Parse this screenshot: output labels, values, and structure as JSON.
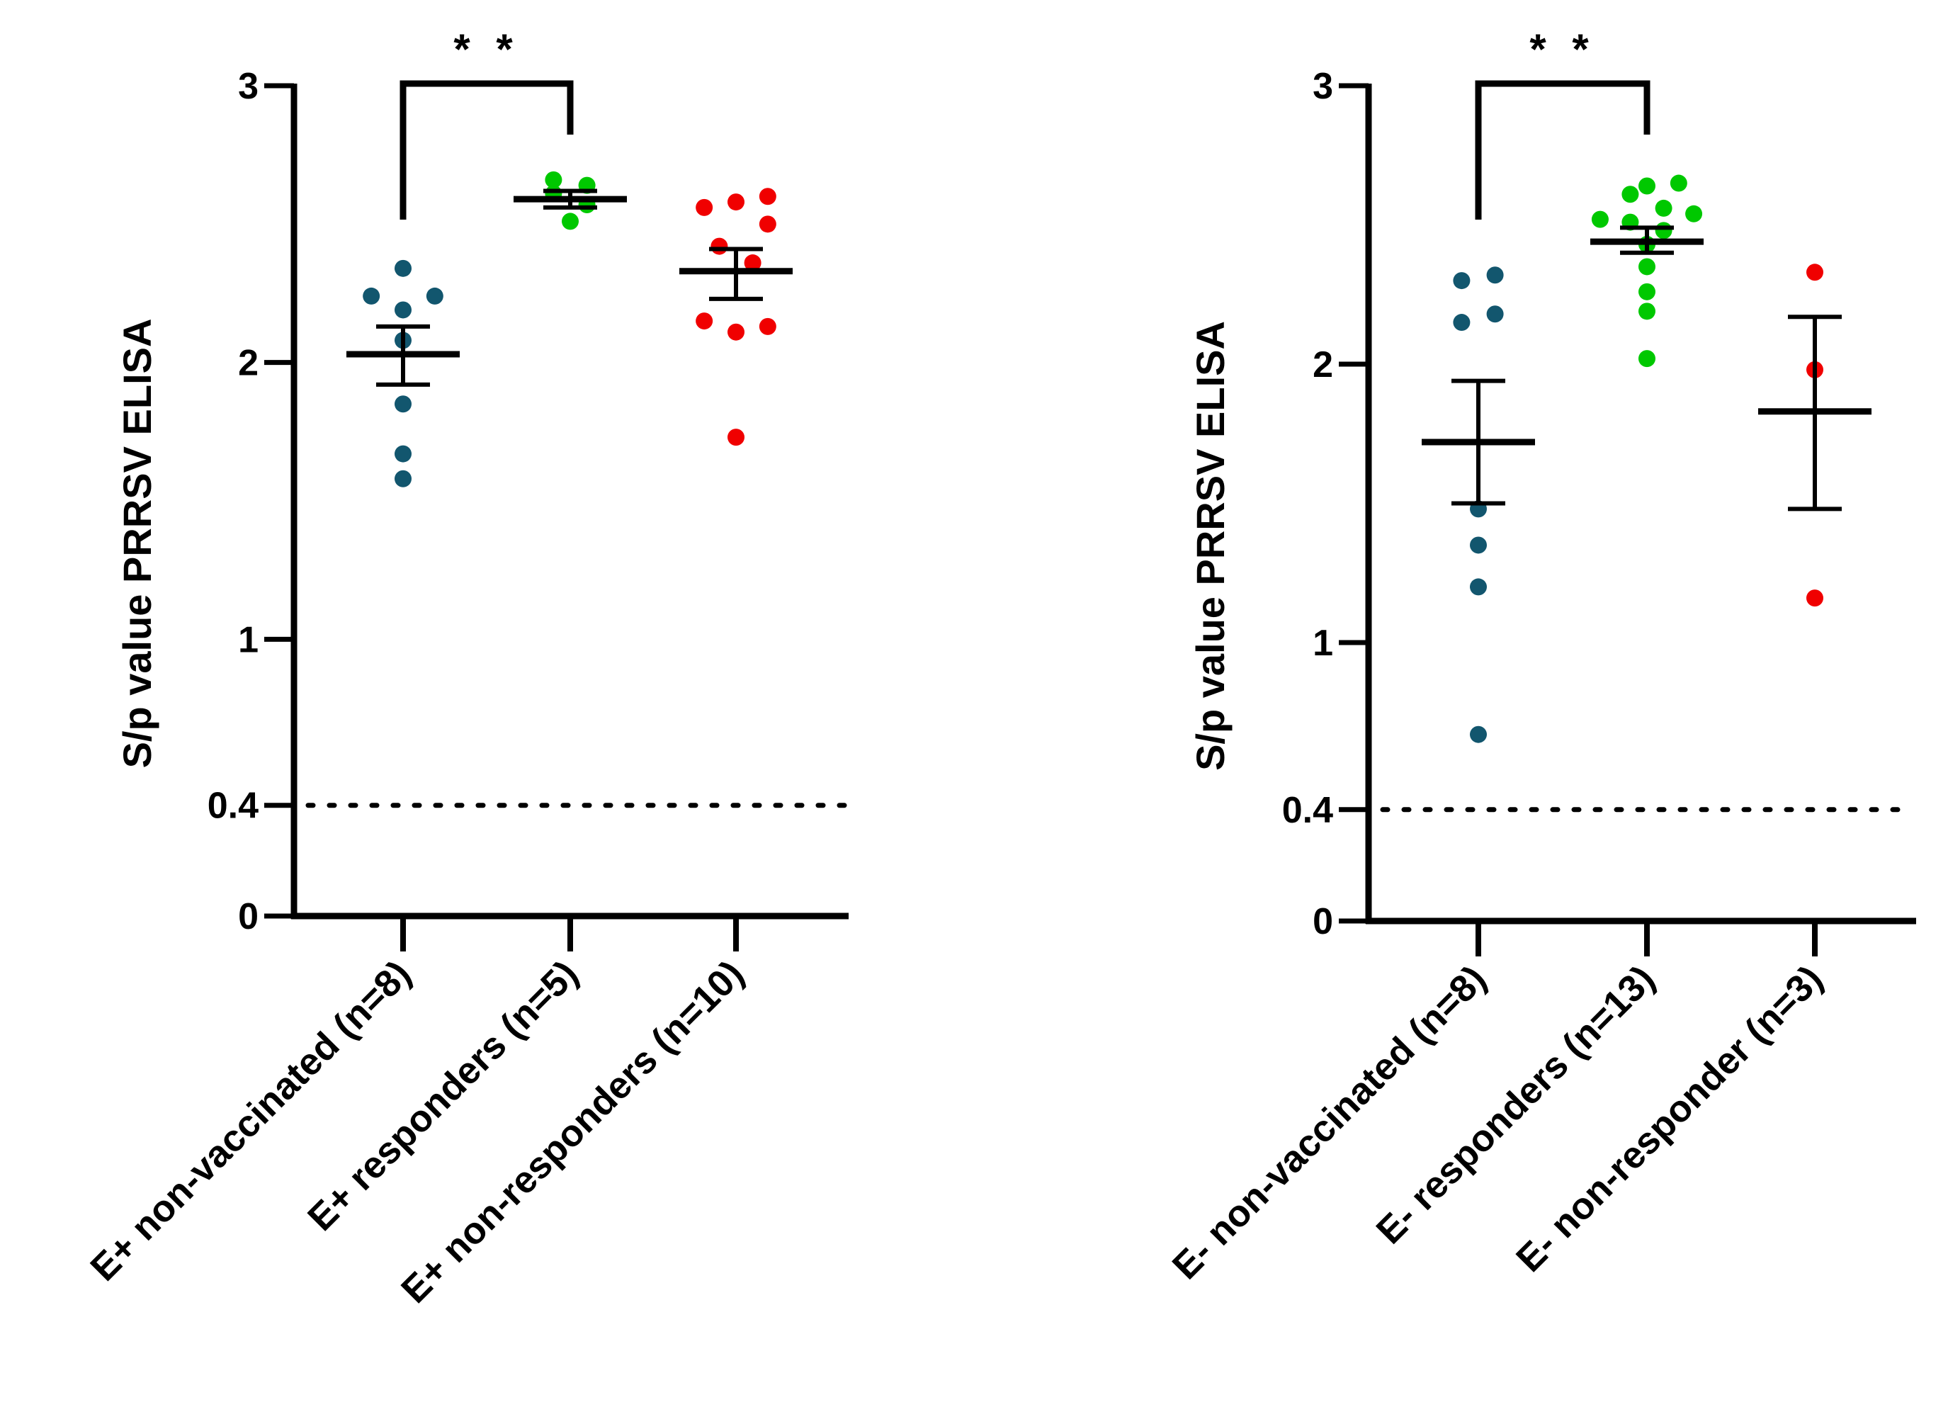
{
  "chart_data": [
    {
      "type": "scatter",
      "ylabel": "S/p value PRRSV ELISA",
      "ylim": [
        0,
        3
      ],
      "yticks": [
        0,
        0.4,
        1,
        2,
        3
      ],
      "ytick_labels": [
        "0",
        "0.4",
        "1",
        "2",
        "3"
      ],
      "threshold": 0.4,
      "categories": [
        "E+ non-vaccinated (n=8)",
        "E+ responders (n=5)",
        "E+ non-responders (n=10)"
      ],
      "series": [
        {
          "color": "#12566e",
          "points": [
            {
              "dx": 0.0,
              "y": 2.34
            },
            {
              "dx": -0.19,
              "y": 2.24
            },
            {
              "dx": 0.19,
              "y": 2.24
            },
            {
              "dx": 0.0,
              "y": 2.19
            },
            {
              "dx": 0.0,
              "y": 2.08
            },
            {
              "dx": 0.0,
              "y": 1.85
            },
            {
              "dx": 0.0,
              "y": 1.67
            },
            {
              "dx": 0.0,
              "y": 1.58
            }
          ],
          "mean": 2.03,
          "sem_low": 1.92,
          "sem_high": 2.13
        },
        {
          "color": "#00c800",
          "points": [
            {
              "dx": -0.1,
              "y": 2.66
            },
            {
              "dx": 0.1,
              "y": 2.64
            },
            {
              "dx": -0.1,
              "y": 2.61
            },
            {
              "dx": 0.1,
              "y": 2.57
            },
            {
              "dx": 0.0,
              "y": 2.51
            }
          ],
          "mean": 2.59,
          "sem_low": 2.56,
          "sem_high": 2.62
        },
        {
          "color": "#f00000",
          "points": [
            {
              "dx": -0.19,
              "y": 2.56
            },
            {
              "dx": 0.0,
              "y": 2.58
            },
            {
              "dx": 0.19,
              "y": 2.6
            },
            {
              "dx": 0.19,
              "y": 2.5
            },
            {
              "dx": -0.1,
              "y": 2.42
            },
            {
              "dx": 0.1,
              "y": 2.36
            },
            {
              "dx": -0.19,
              "y": 2.15
            },
            {
              "dx": 0.19,
              "y": 2.13
            },
            {
              "dx": 0.0,
              "y": 2.11
            },
            {
              "dx": 0.0,
              "y": 1.73
            }
          ],
          "mean": 2.33,
          "sem_low": 2.23,
          "sem_high": 2.41
        }
      ],
      "significance": {
        "from": 0,
        "to": 1,
        "label": "* *"
      }
    },
    {
      "type": "scatter",
      "ylabel": "S/p value PRRSV ELISA",
      "ylim": [
        0,
        3
      ],
      "yticks": [
        0,
        0.4,
        1,
        2,
        3
      ],
      "ytick_labels": [
        "0",
        "0.4",
        "1",
        "2",
        "3"
      ],
      "threshold": 0.4,
      "categories": [
        "E- non-vaccinated (n=8)",
        "E- responders (n=13)",
        "E- non-responder (n=3)"
      ],
      "series": [
        {
          "color": "#12566e",
          "points": [
            {
              "dx": -0.1,
              "y": 2.3
            },
            {
              "dx": 0.1,
              "y": 2.32
            },
            {
              "dx": -0.1,
              "y": 2.15
            },
            {
              "dx": 0.1,
              "y": 2.18
            },
            {
              "dx": 0.0,
              "y": 1.48
            },
            {
              "dx": 0.0,
              "y": 1.35
            },
            {
              "dx": 0.0,
              "y": 1.2
            },
            {
              "dx": 0.0,
              "y": 0.67
            }
          ],
          "mean": 1.72,
          "sem_low": 1.5,
          "sem_high": 1.94
        },
        {
          "color": "#00c800",
          "points": [
            {
              "dx": -0.1,
              "y": 2.61
            },
            {
              "dx": 0.0,
              "y": 2.64
            },
            {
              "dx": 0.19,
              "y": 2.65
            },
            {
              "dx": -0.28,
              "y": 2.52
            },
            {
              "dx": -0.1,
              "y": 2.51
            },
            {
              "dx": 0.1,
              "y": 2.48
            },
            {
              "dx": 0.28,
              "y": 2.54
            },
            {
              "dx": 0.0,
              "y": 2.43
            },
            {
              "dx": 0.0,
              "y": 2.35
            },
            {
              "dx": 0.0,
              "y": 2.26
            },
            {
              "dx": 0.0,
              "y": 2.19
            },
            {
              "dx": 0.0,
              "y": 2.02
            },
            {
              "dx": 0.1,
              "y": 2.56
            }
          ],
          "mean": 2.44,
          "sem_low": 2.4,
          "sem_high": 2.49
        },
        {
          "color": "#f00000",
          "points": [
            {
              "dx": 0.0,
              "y": 2.33
            },
            {
              "dx": 0.0,
              "y": 1.98
            },
            {
              "dx": 0.0,
              "y": 1.16
            }
          ],
          "mean": 1.83,
          "sem_low": 1.48,
          "sem_high": 2.17
        }
      ],
      "significance": {
        "from": 0,
        "to": 1,
        "label": "* *"
      }
    }
  ]
}
